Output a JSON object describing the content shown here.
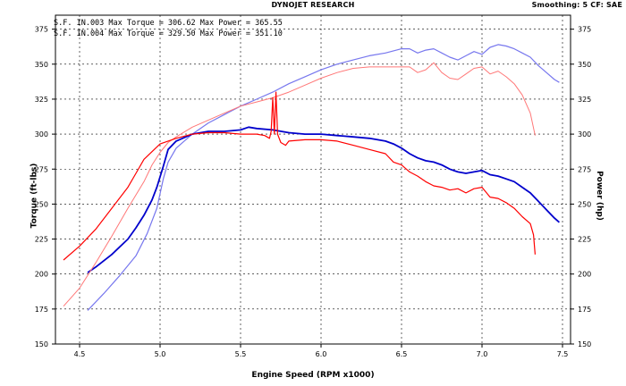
{
  "header": {
    "title": "DYNOJET RESEARCH",
    "right_info": "Smoothing: 5  CF: SAE"
  },
  "runs": [
    {
      "label": "S.F. IN.003 Max Torque = 306.62 Max Power = 365.55"
    },
    {
      "label": "S.F. IN.004 Max Torque = 329.50 Max Power = 351.10"
    }
  ],
  "colors": {
    "background": "#ffffff",
    "grid": "#000000",
    "run1_power": "#7777ee",
    "run1_torque": "#0000cc",
    "run2_power": "#ff7777",
    "run2_torque": "#ff0000"
  },
  "chart_data": {
    "type": "line",
    "title": "DYNOJET RESEARCH",
    "xlabel": "Engine Speed (RPM x1000)",
    "ylabel_left": "Torque (ft-lbs)",
    "ylabel_right": "Power (hp)",
    "xlim": [
      4.35,
      7.55
    ],
    "ylim": [
      150,
      385
    ],
    "x_ticks": [
      4.5,
      5.0,
      5.5,
      6.0,
      6.5,
      7.0,
      7.5
    ],
    "x_tick_labels": [
      "4.5",
      "5.0",
      "5.5",
      "6.0",
      "6.5",
      "7.0",
      "7.5"
    ],
    "y_ticks": [
      150,
      175,
      200,
      225,
      250,
      275,
      300,
      325,
      350,
      375
    ],
    "y_tick_labels": [
      "150",
      "175",
      "200",
      "225",
      "250",
      "275",
      "300",
      "325",
      "350",
      "375"
    ],
    "grid": true,
    "series": [
      {
        "name": "S.F. IN.003 Power",
        "color": "#7777ee",
        "width": 1.2,
        "x": [
          4.55,
          4.65,
          4.75,
          4.85,
          4.92,
          4.98,
          5.02,
          5.05,
          5.1,
          5.2,
          5.3,
          5.4,
          5.5,
          5.6,
          5.7,
          5.8,
          5.9,
          6.0,
          6.1,
          6.2,
          6.3,
          6.4,
          6.5,
          6.55,
          6.6,
          6.65,
          6.7,
          6.75,
          6.8,
          6.85,
          6.9,
          6.95,
          7.0,
          7.05,
          7.1,
          7.15,
          7.2,
          7.25,
          7.3,
          7.35,
          7.4,
          7.45,
          7.48
        ],
        "y": [
          174,
          186,
          199,
          213,
          229,
          247,
          268,
          280,
          290,
          300,
          308,
          314,
          320,
          325,
          330,
          336,
          341,
          346,
          350,
          353,
          356,
          358,
          361,
          361,
          358,
          360,
          361,
          358,
          355,
          353,
          356,
          359,
          357,
          362,
          364,
          363,
          361,
          358,
          355,
          349,
          344,
          339,
          337
        ]
      },
      {
        "name": "S.F. IN.003 Torque",
        "color": "#0000cc",
        "width": 1.8,
        "x": [
          4.55,
          4.6,
          4.7,
          4.8,
          4.85,
          4.9,
          4.95,
          4.98,
          5.02,
          5.05,
          5.1,
          5.2,
          5.3,
          5.4,
          5.5,
          5.55,
          5.6,
          5.7,
          5.8,
          5.9,
          6.0,
          6.1,
          6.2,
          6.3,
          6.4,
          6.45,
          6.5,
          6.55,
          6.6,
          6.65,
          6.7,
          6.75,
          6.8,
          6.85,
          6.9,
          6.95,
          7.0,
          7.05,
          7.1,
          7.15,
          7.2,
          7.25,
          7.3,
          7.35,
          7.4,
          7.45,
          7.48
        ],
        "y": [
          201,
          205,
          214,
          225,
          233,
          242,
          253,
          262,
          277,
          289,
          295,
          300,
          302,
          302,
          303,
          305,
          304,
          303,
          301,
          300,
          300,
          299,
          298,
          297,
          295,
          293,
          290,
          286,
          283,
          281,
          280,
          278,
          275,
          273,
          272,
          273,
          274,
          271,
          270,
          268,
          266,
          262,
          258,
          252,
          246,
          240,
          237
        ]
      },
      {
        "name": "S.F. IN.004 Power",
        "color": "#ff7777",
        "width": 1.0,
        "x": [
          4.4,
          4.5,
          4.6,
          4.7,
          4.8,
          4.9,
          4.95,
          5.0,
          5.05,
          5.1,
          5.2,
          5.3,
          5.4,
          5.5,
          5.6,
          5.7,
          5.8,
          5.9,
          6.0,
          6.1,
          6.2,
          6.3,
          6.4,
          6.5,
          6.55,
          6.6,
          6.65,
          6.7,
          6.75,
          6.8,
          6.85,
          6.9,
          6.95,
          7.0,
          7.05,
          7.1,
          7.15,
          7.2,
          7.25,
          7.3,
          7.33
        ],
        "y": [
          177,
          190,
          208,
          227,
          247,
          266,
          278,
          287,
          294,
          298,
          305,
          310,
          315,
          320,
          323,
          326,
          330,
          335,
          340,
          344,
          347,
          348,
          348,
          348,
          348,
          344,
          346,
          351,
          344,
          340,
          339,
          343,
          347,
          348,
          343,
          345,
          341,
          336,
          328,
          315,
          299
        ]
      },
      {
        "name": "S.F. IN.004 Torque",
        "color": "#ff0000",
        "width": 1.2,
        "x": [
          4.4,
          4.5,
          4.6,
          4.7,
          4.8,
          4.85,
          4.9,
          5.0,
          5.1,
          5.2,
          5.3,
          5.4,
          5.5,
          5.55,
          5.6,
          5.65,
          5.68,
          5.69,
          5.7,
          5.71,
          5.72,
          5.73,
          5.75,
          5.78,
          5.8,
          5.9,
          6.0,
          6.1,
          6.2,
          6.3,
          6.4,
          6.45,
          6.5,
          6.55,
          6.6,
          6.65,
          6.7,
          6.75,
          6.8,
          6.85,
          6.9,
          6.95,
          7.0,
          7.05,
          7.1,
          7.15,
          7.2,
          7.25,
          7.3,
          7.32,
          7.33
        ],
        "y": [
          210,
          220,
          232,
          247,
          262,
          272,
          282,
          293,
          297,
          300,
          301,
          301,
          300,
          300,
          300,
          299,
          297,
          302,
          326,
          300,
          330,
          300,
          294,
          292,
          295,
          296,
          296,
          295,
          292,
          289,
          286,
          280,
          278,
          273,
          270,
          266,
          263,
          262,
          260,
          261,
          258,
          261,
          262,
          255,
          254,
          251,
          247,
          241,
          236,
          228,
          214
        ]
      }
    ]
  }
}
